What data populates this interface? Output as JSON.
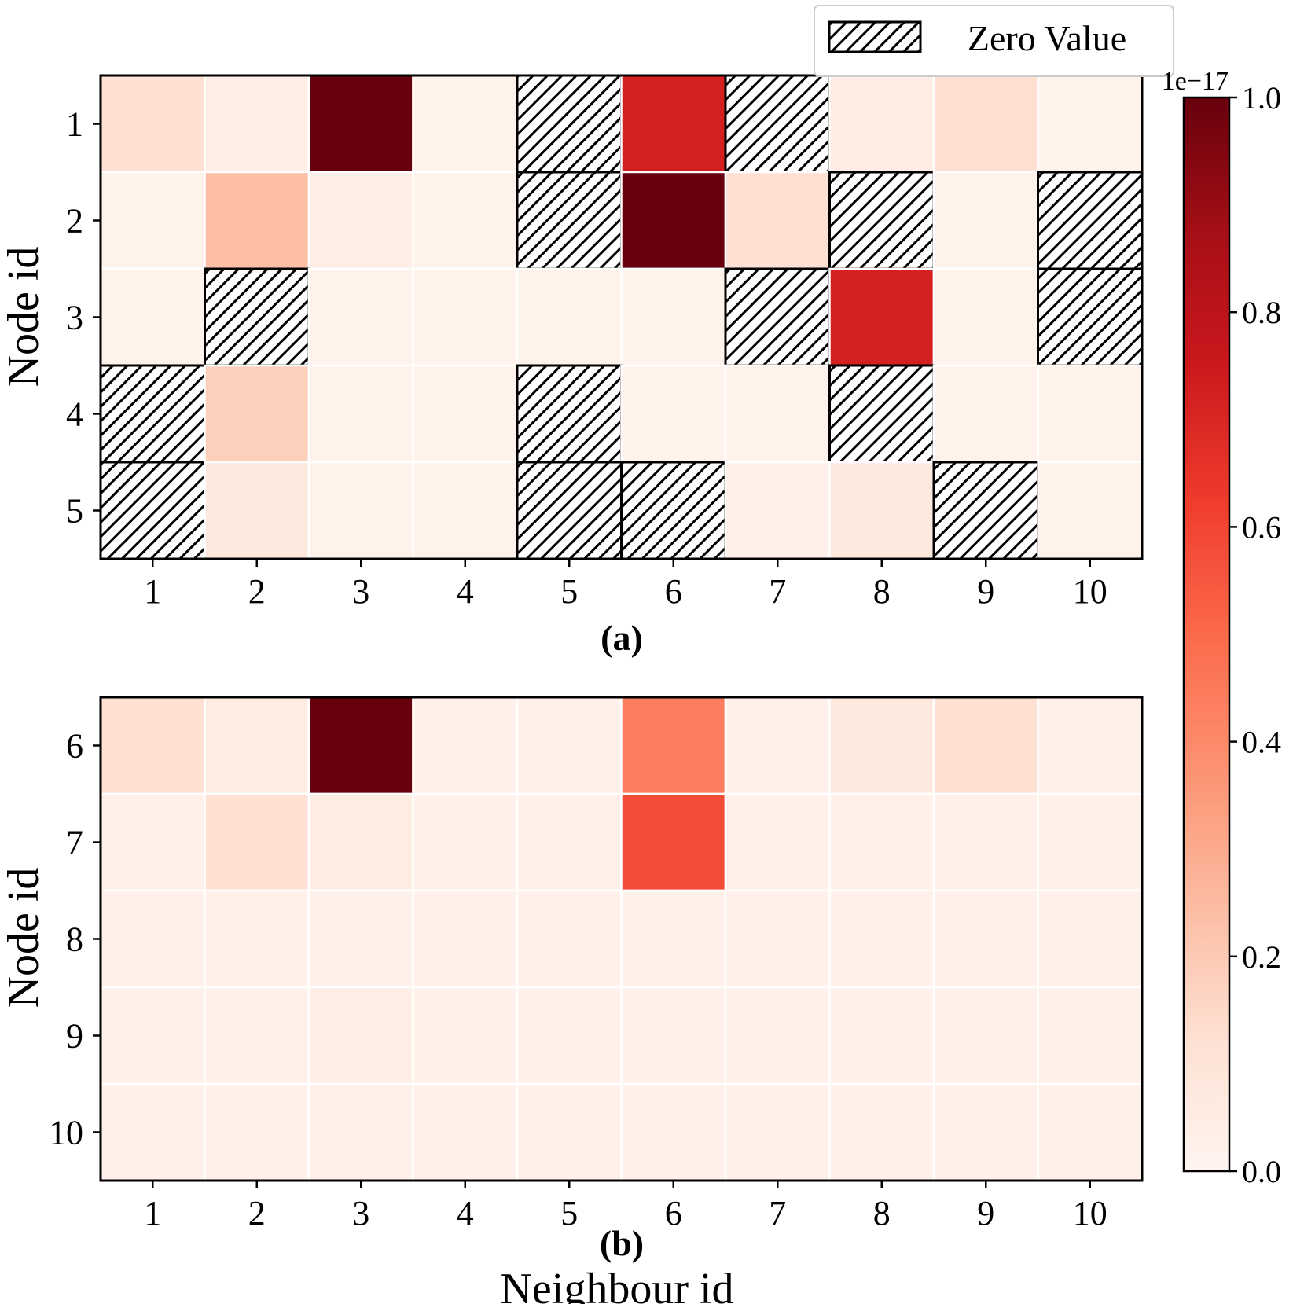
{
  "colors": {
    "colormap": [
      "#fff5f0",
      "#fee0d2",
      "#fcbba1",
      "#fc9272",
      "#fb6a4a",
      "#ef3b2c",
      "#cb181d",
      "#a50f15",
      "#67000d"
    ],
    "hatch_stroke": "#000000",
    "grid_line": "#ffffff",
    "frame": "#000000"
  },
  "legend": {
    "label": "Zero Value"
  },
  "colorbar": {
    "offset_text": "1e−17",
    "min": 0.0,
    "max": 1.0,
    "tick_values": [
      0.0,
      0.2,
      0.4,
      0.6,
      0.8,
      1.0
    ],
    "tick_labels": [
      "0.0",
      "0.2",
      "0.4",
      "0.6",
      "0.8",
      "1.0"
    ]
  },
  "chart_data": [
    {
      "type": "heatmap",
      "panel_label": "(a)",
      "ylabel": "Node id",
      "xlabel": "",
      "x_ticks": [
        "1",
        "2",
        "3",
        "4",
        "5",
        "6",
        "7",
        "8",
        "9",
        "10"
      ],
      "y_ticks": [
        "1",
        "2",
        "3",
        "4",
        "5"
      ],
      "value_scale": "1e-17",
      "hatched_means": "Zero Value",
      "values": [
        [
          0.12,
          0.04,
          1.0,
          0.02,
          0.0,
          0.72,
          0.0,
          0.05,
          0.13,
          0.02
        ],
        [
          0.02,
          0.24,
          0.04,
          0.02,
          0.0,
          1.0,
          0.12,
          0.0,
          0.02,
          0.0
        ],
        [
          0.02,
          0.0,
          0.02,
          0.02,
          0.02,
          0.02,
          0.0,
          0.72,
          0.02,
          0.0
        ],
        [
          0.0,
          0.18,
          0.02,
          0.02,
          0.0,
          0.02,
          0.02,
          0.0,
          0.02,
          0.02
        ],
        [
          0.0,
          0.07,
          0.02,
          0.02,
          0.0,
          0.0,
          0.03,
          0.07,
          0.0,
          0.02
        ]
      ]
    },
    {
      "type": "heatmap",
      "panel_label": "(b)",
      "ylabel": "Node id",
      "xlabel": "Neighbour id",
      "x_ticks": [
        "1",
        "2",
        "3",
        "4",
        "5",
        "6",
        "7",
        "8",
        "9",
        "10"
      ],
      "y_ticks": [
        "6",
        "7",
        "8",
        "9",
        "10"
      ],
      "value_scale": "1e-17",
      "values": [
        [
          0.12,
          0.05,
          1.0,
          0.03,
          0.03,
          0.44,
          0.03,
          0.07,
          0.12,
          0.03
        ],
        [
          0.03,
          0.12,
          0.05,
          0.03,
          0.03,
          0.58,
          0.03,
          0.03,
          0.03,
          0.03
        ],
        [
          0.03,
          0.03,
          0.03,
          0.03,
          0.03,
          0.03,
          0.03,
          0.03,
          0.03,
          0.03
        ],
        [
          0.03,
          0.03,
          0.04,
          0.03,
          0.03,
          0.03,
          0.03,
          0.03,
          0.03,
          0.03
        ],
        [
          0.03,
          0.03,
          0.03,
          0.03,
          0.03,
          0.03,
          0.03,
          0.03,
          0.03,
          0.03
        ]
      ]
    }
  ]
}
